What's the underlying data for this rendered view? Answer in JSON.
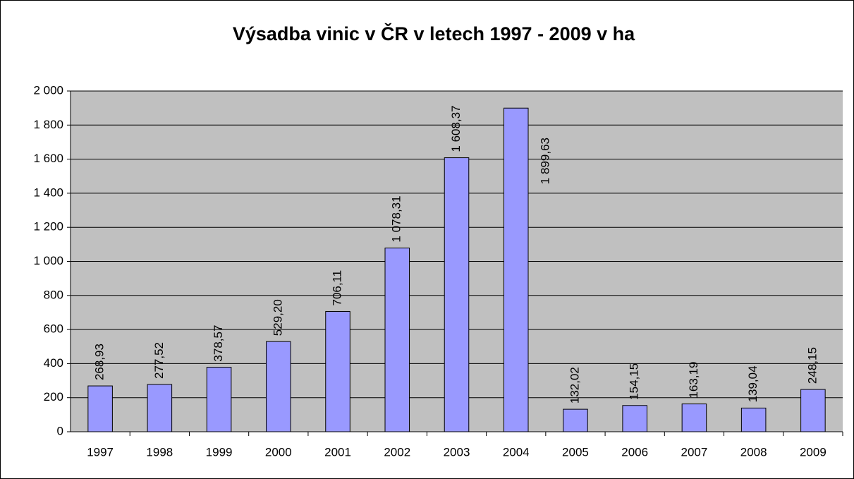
{
  "chart_data": {
    "type": "bar",
    "title": "Výsadba vinic v ČR v letech 1997 - 2009 v ha",
    "categories": [
      "1997",
      "1998",
      "1999",
      "2000",
      "2001",
      "2002",
      "2003",
      "2004",
      "2005",
      "2006",
      "2007",
      "2008",
      "2009"
    ],
    "values": [
      268.93,
      277.52,
      378.57,
      529.2,
      706.11,
      1078.31,
      1608.37,
      1899.63,
      132.02,
      154.15,
      163.19,
      139.04,
      248.15
    ],
    "value_labels": [
      "268,93",
      "277,52",
      "378,57",
      "529,20",
      "706,11",
      "1 078,31",
      "1 608,37",
      "1 899,63",
      "132,02",
      "154,15",
      "163,19",
      "139,04",
      "248,15"
    ],
    "color": "#9999ff",
    "ylim": [
      0,
      2000
    ],
    "yticks": [
      0,
      200,
      400,
      600,
      800,
      {
        "value": 1000,
        "label": "1 000"
      },
      {
        "value": 1200,
        "label": "1 200"
      },
      {
        "value": 1400,
        "label": "1 400"
      },
      {
        "value": 1600,
        "label": "1 600"
      },
      {
        "value": 1800,
        "label": "1 800"
      },
      {
        "value": 2000,
        "label": "2 000"
      }
    ],
    "grid": true
  }
}
